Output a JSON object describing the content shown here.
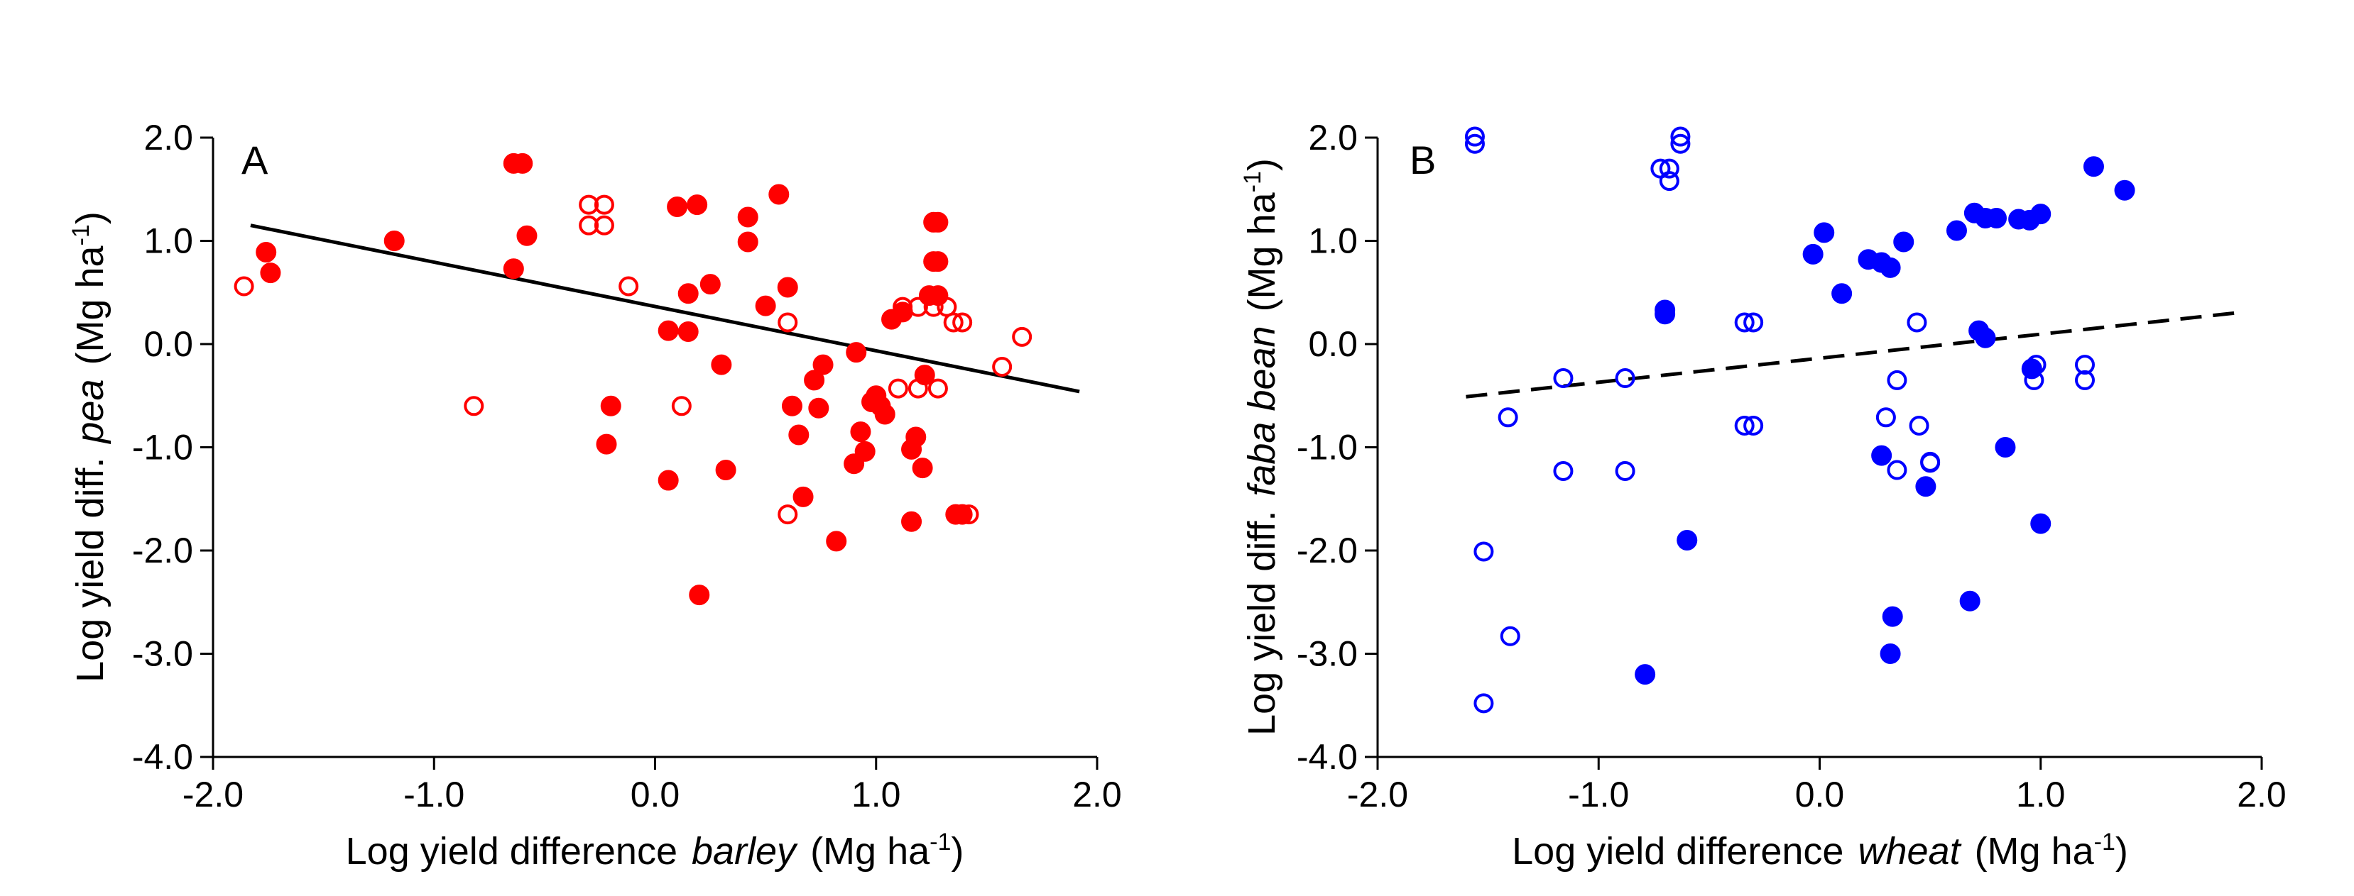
{
  "chart_data": [
    {
      "type": "scatter",
      "panel_label": "A",
      "xlabel": {
        "prefix": "Log yield difference",
        "crop": "barley",
        "unit_open": "(Mg ha",
        "unit_sup": "-1",
        "unit_close": ")"
      },
      "ylabel": {
        "prefix": "Log yield diff.",
        "crop": "pea",
        "unit_open": "(Mg ha",
        "unit_sup": "-1",
        "unit_close": ")"
      },
      "xlim": [
        -2.0,
        2.0
      ],
      "ylim": [
        -4.0,
        2.0
      ],
      "xticks": [
        "-2.0",
        "-1.0",
        "0.0",
        "1.0",
        "2.0"
      ],
      "yticks": [
        "2.0",
        "1.0",
        "0.0",
        "-1.0",
        "-2.0",
        "-3.0",
        "-4.0"
      ],
      "color": "#ff0000",
      "trend_line": {
        "style": "solid",
        "color": "#000000",
        "x": [
          -1.83,
          1.92
        ],
        "y": [
          1.15,
          -0.46
        ]
      },
      "series": [
        {
          "name": "filled",
          "marker": "filled-circle",
          "points": [
            [
              -1.76,
              0.89
            ],
            [
              -1.74,
              0.69
            ],
            [
              -1.18,
              1.0
            ],
            [
              -0.64,
              1.75
            ],
            [
              -0.6,
              1.75
            ],
            [
              -0.64,
              0.73
            ],
            [
              -0.58,
              1.05
            ],
            [
              -0.2,
              -0.6
            ],
            [
              -0.22,
              -0.97
            ],
            [
              0.1,
              1.33
            ],
            [
              0.19,
              1.35
            ],
            [
              0.06,
              0.13
            ],
            [
              0.15,
              0.12
            ],
            [
              0.15,
              0.49
            ],
            [
              0.25,
              0.58
            ],
            [
              0.06,
              -1.32
            ],
            [
              0.3,
              -0.2
            ],
            [
              0.42,
              1.23
            ],
            [
              0.42,
              0.99
            ],
            [
              0.5,
              0.37
            ],
            [
              0.56,
              1.45
            ],
            [
              0.6,
              0.55
            ],
            [
              0.62,
              -0.6
            ],
            [
              0.65,
              -0.88
            ],
            [
              0.67,
              -1.48
            ],
            [
              0.72,
              -0.35
            ],
            [
              0.74,
              -0.62
            ],
            [
              0.76,
              -0.2
            ],
            [
              0.32,
              -1.22
            ],
            [
              0.82,
              -1.91
            ],
            [
              0.91,
              -0.08
            ],
            [
              0.9,
              -1.16
            ],
            [
              0.93,
              -0.85
            ],
            [
              0.95,
              -1.04
            ],
            [
              0.98,
              -0.56
            ],
            [
              1.0,
              -0.5
            ],
            [
              1.02,
              -0.6
            ],
            [
              1.04,
              -0.68
            ],
            [
              1.07,
              0.24
            ],
            [
              1.12,
              0.31
            ],
            [
              1.16,
              -1.02
            ],
            [
              1.18,
              -0.9
            ],
            [
              1.21,
              -1.2
            ],
            [
              1.16,
              -1.72
            ],
            [
              1.22,
              -0.3
            ],
            [
              0.2,
              -2.43
            ],
            [
              1.24,
              0.47
            ],
            [
              1.28,
              0.47
            ],
            [
              1.26,
              0.8
            ],
            [
              1.28,
              0.8
            ],
            [
              1.26,
              1.18
            ],
            [
              1.28,
              1.18
            ],
            [
              1.36,
              -1.65
            ],
            [
              1.39,
              -1.65
            ]
          ]
        },
        {
          "name": "open",
          "marker": "open-circle",
          "points": [
            [
              -1.86,
              0.56
            ],
            [
              -0.82,
              -0.6
            ],
            [
              -0.3,
              1.35
            ],
            [
              -0.3,
              1.15
            ],
            [
              -0.23,
              1.35
            ],
            [
              -0.23,
              1.15
            ],
            [
              -0.12,
              0.56
            ],
            [
              0.12,
              -0.6
            ],
            [
              0.6,
              0.21
            ],
            [
              0.6,
              -1.65
            ],
            [
              1.1,
              -0.43
            ],
            [
              1.12,
              0.36
            ],
            [
              1.19,
              0.36
            ],
            [
              1.19,
              -0.43
            ],
            [
              1.26,
              0.36
            ],
            [
              1.28,
              -0.43
            ],
            [
              1.32,
              0.36
            ],
            [
              1.35,
              0.21
            ],
            [
              1.39,
              0.21
            ],
            [
              1.42,
              -1.65
            ],
            [
              1.57,
              -0.22
            ],
            [
              1.66,
              0.07
            ]
          ]
        }
      ]
    },
    {
      "type": "scatter",
      "panel_label": "B",
      "xlabel": {
        "prefix": "Log yield difference",
        "crop": "wheat",
        "unit_open": "(Mg ha",
        "unit_sup": "-1",
        "unit_close": ")"
      },
      "ylabel": {
        "prefix": "Log yield diff.",
        "crop": "faba bean",
        "unit_open": "(Mg ha",
        "unit_sup": "-1",
        "unit_close": ")"
      },
      "xlim": [
        -2.0,
        2.0
      ],
      "ylim": [
        -4.0,
        2.0
      ],
      "xticks": [
        "-2.0",
        "-1.0",
        "0.0",
        "1.0",
        "2.0"
      ],
      "yticks": [
        "2.0",
        "1.0",
        "0.0",
        "-1.0",
        "-2.0",
        "-3.0",
        "-4.0"
      ],
      "color": "#0000ff",
      "trend_line": {
        "style": "dashed",
        "color": "#000000",
        "x": [
          -1.6,
          1.92
        ],
        "y": [
          -0.51,
          0.31
        ]
      },
      "series": [
        {
          "name": "filled",
          "marker": "filled-circle",
          "points": [
            [
              -0.7,
              0.33
            ],
            [
              -0.7,
              0.29
            ],
            [
              -0.6,
              -1.9
            ],
            [
              -0.79,
              -3.2
            ],
            [
              -0.03,
              0.87
            ],
            [
              0.02,
              1.08
            ],
            [
              0.1,
              0.49
            ],
            [
              0.22,
              0.82
            ],
            [
              0.28,
              0.79
            ],
            [
              0.32,
              0.74
            ],
            [
              0.38,
              0.99
            ],
            [
              0.62,
              1.1
            ],
            [
              0.7,
              1.27
            ],
            [
              0.75,
              1.22
            ],
            [
              0.8,
              1.22
            ],
            [
              0.9,
              1.21
            ],
            [
              0.95,
              1.2
            ],
            [
              1.0,
              1.26
            ],
            [
              1.24,
              1.72
            ],
            [
              1.38,
              1.49
            ],
            [
              0.72,
              0.13
            ],
            [
              0.75,
              0.06
            ],
            [
              0.96,
              -0.24
            ],
            [
              0.28,
              -1.08
            ],
            [
              0.48,
              -1.38
            ],
            [
              0.84,
              -1.0
            ],
            [
              1.0,
              -1.74
            ],
            [
              0.33,
              -2.64
            ],
            [
              0.32,
              -3.0
            ],
            [
              0.68,
              -2.49
            ]
          ]
        },
        {
          "name": "open",
          "marker": "open-circle",
          "points": [
            [
              -1.56,
              2.01
            ],
            [
              -1.56,
              1.94
            ],
            [
              -1.52,
              -2.01
            ],
            [
              -1.52,
              -3.48
            ],
            [
              -1.41,
              -0.71
            ],
            [
              -1.4,
              -2.83
            ],
            [
              -1.16,
              -0.33
            ],
            [
              -1.16,
              -1.23
            ],
            [
              -0.88,
              -0.33
            ],
            [
              -0.88,
              -1.23
            ],
            [
              -0.72,
              1.7
            ],
            [
              -0.68,
              1.7
            ],
            [
              -0.68,
              1.58
            ],
            [
              -0.63,
              2.01
            ],
            [
              -0.63,
              1.94
            ],
            [
              -0.34,
              0.21
            ],
            [
              -0.3,
              0.21
            ],
            [
              -0.34,
              -0.79
            ],
            [
              -0.3,
              -0.79
            ],
            [
              0.3,
              -0.71
            ],
            [
              0.35,
              -0.35
            ],
            [
              0.35,
              -1.22
            ],
            [
              0.44,
              0.21
            ],
            [
              0.45,
              -0.79
            ],
            [
              0.5,
              -1.14
            ],
            [
              0.5,
              -1.15
            ],
            [
              0.97,
              -0.35
            ],
            [
              0.98,
              -0.2
            ],
            [
              1.2,
              -0.2
            ],
            [
              1.2,
              -0.35
            ]
          ]
        }
      ]
    }
  ]
}
